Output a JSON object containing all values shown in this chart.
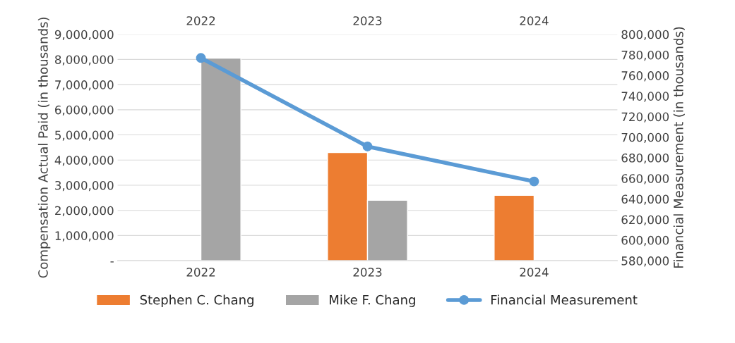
{
  "chart_data": {
    "type": "bar",
    "categories": [
      "2022",
      "2023",
      "2024"
    ],
    "ylabel": "Compensation Actual Paid (in thousands)",
    "y2label": "Financial Measurement (in thousands)",
    "series": [
      {
        "name": "Stephen C. Chang",
        "color": "#ed7d31",
        "values": [
          null,
          4300000,
          2600000
        ]
      },
      {
        "name": "Mike F. Chang",
        "color": "#a5a5a5",
        "values": [
          8050000,
          2400000,
          null
        ]
      },
      {
        "name": "Financial Measurement",
        "type": "line",
        "axis": "y2",
        "color": "#5b9bd5",
        "values": [
          777000,
          691000,
          657000
        ]
      }
    ],
    "ylim": [
      0,
      9000000
    ],
    "yticks": [
      {
        "value": 0,
        "label": "-"
      },
      {
        "value": 1000000,
        "label": "1,000,000"
      },
      {
        "value": 2000000,
        "label": "2,000,000"
      },
      {
        "value": 3000000,
        "label": "3,000,000"
      },
      {
        "value": 4000000,
        "label": "4,000,000"
      },
      {
        "value": 5000000,
        "label": "5,000,000"
      },
      {
        "value": 6000000,
        "label": "6,000,000"
      },
      {
        "value": 7000000,
        "label": "7,000,000"
      },
      {
        "value": 8000000,
        "label": "8,000,000"
      },
      {
        "value": 9000000,
        "label": "9,000,000"
      }
    ],
    "y2lim": [
      580000,
      800000
    ],
    "y2ticks": [
      {
        "value": 580000,
        "label": "580,000"
      },
      {
        "value": 600000,
        "label": "600,000"
      },
      {
        "value": 620000,
        "label": "620,000"
      },
      {
        "value": 640000,
        "label": "640,000"
      },
      {
        "value": 660000,
        "label": "660,000"
      },
      {
        "value": 680000,
        "label": "680,000"
      },
      {
        "value": 700000,
        "label": "700,000"
      },
      {
        "value": 720000,
        "label": "720,000"
      },
      {
        "value": 740000,
        "label": "740,000"
      },
      {
        "value": 760000,
        "label": "760,000"
      },
      {
        "value": 780000,
        "label": "780,000"
      },
      {
        "value": 800000,
        "label": "800,000"
      }
    ],
    "grid": "y",
    "legend": "bottom",
    "marker": "circle",
    "line_style": "solid"
  }
}
